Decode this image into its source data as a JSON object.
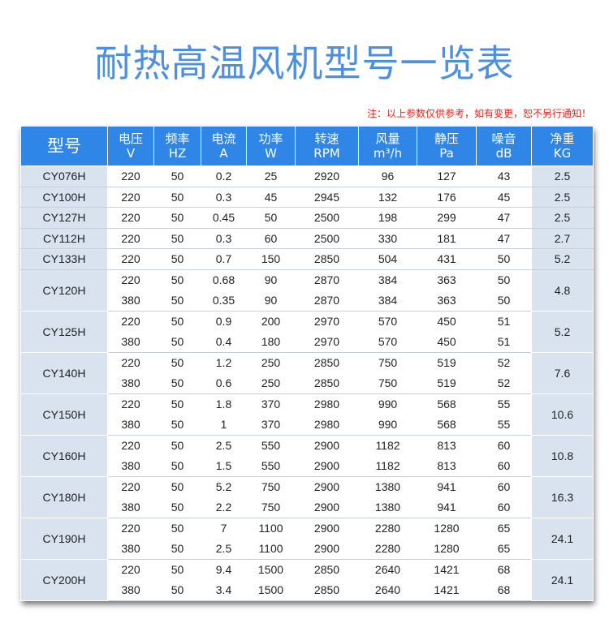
{
  "title": "耐热高温风机型号一览表",
  "note": "注：以上参数仅供参考，如有变更，恕不另行通知！",
  "columns": [
    {
      "l1": "型号",
      "l2": ""
    },
    {
      "l1": "电压",
      "l2": "V"
    },
    {
      "l1": "频率",
      "l2": "HZ"
    },
    {
      "l1": "电流",
      "l2": "A"
    },
    {
      "l1": "功率",
      "l2": "W"
    },
    {
      "l1": "转速",
      "l2": "RPM"
    },
    {
      "l1": "风量",
      "l2": "m³/h"
    },
    {
      "l1": "静压",
      "l2": "Pa"
    },
    {
      "l1": "噪音",
      "l2": "dB"
    },
    {
      "l1": "净重",
      "l2": "KG"
    }
  ],
  "models": [
    {
      "model": "CY076H",
      "weight": "2.5",
      "rows": [
        [
          "220",
          "50",
          "0.2",
          "25",
          "2920",
          "96",
          "127",
          "43"
        ]
      ]
    },
    {
      "model": "CY100H",
      "weight": "2.5",
      "rows": [
        [
          "220",
          "50",
          "0.3",
          "45",
          "2945",
          "132",
          "176",
          "45"
        ]
      ]
    },
    {
      "model": "CY127H",
      "weight": "2.5",
      "rows": [
        [
          "220",
          "50",
          "0.45",
          "50",
          "2500",
          "198",
          "299",
          "47"
        ]
      ]
    },
    {
      "model": "CY112H",
      "weight": "2.7",
      "rows": [
        [
          "220",
          "50",
          "0.3",
          "60",
          "2500",
          "330",
          "181",
          "47"
        ]
      ]
    },
    {
      "model": "CY133H",
      "weight": "5.2",
      "rows": [
        [
          "220",
          "50",
          "0.7",
          "150",
          "2850",
          "504",
          "431",
          "50"
        ]
      ]
    },
    {
      "model": "CY120H",
      "weight": "4.8",
      "rows": [
        [
          "220",
          "50",
          "0.68",
          "90",
          "2870",
          "384",
          "363",
          "50"
        ],
        [
          "380",
          "50",
          "0.35",
          "90",
          "2870",
          "384",
          "363",
          "50"
        ]
      ]
    },
    {
      "model": "CY125H",
      "weight": "5.2",
      "rows": [
        [
          "220",
          "50",
          "0.9",
          "200",
          "2970",
          "570",
          "450",
          "51"
        ],
        [
          "380",
          "50",
          "0.4",
          "180",
          "2970",
          "570",
          "450",
          "51"
        ]
      ]
    },
    {
      "model": "CY140H",
      "weight": "7.6",
      "rows": [
        [
          "220",
          "50",
          "1.2",
          "250",
          "2850",
          "750",
          "519",
          "52"
        ],
        [
          "380",
          "50",
          "0.6",
          "250",
          "2850",
          "750",
          "519",
          "52"
        ]
      ]
    },
    {
      "model": "CY150H",
      "weight": "10.6",
      "rows": [
        [
          "220",
          "50",
          "1.8",
          "370",
          "2980",
          "990",
          "568",
          "55"
        ],
        [
          "380",
          "50",
          "1",
          "370",
          "2980",
          "990",
          "568",
          "55"
        ]
      ]
    },
    {
      "model": "CY160H",
      "weight": "10.8",
      "rows": [
        [
          "220",
          "50",
          "2.5",
          "550",
          "2900",
          "1182",
          "813",
          "60"
        ],
        [
          "380",
          "50",
          "1.5",
          "550",
          "2900",
          "1182",
          "813",
          "60"
        ]
      ]
    },
    {
      "model": "CY180H",
      "weight": "16.3",
      "rows": [
        [
          "220",
          "50",
          "5.2",
          "750",
          "2900",
          "1380",
          "941",
          "60"
        ],
        [
          "380",
          "50",
          "2.2",
          "750",
          "2900",
          "1380",
          "941",
          "60"
        ]
      ]
    },
    {
      "model": "CY190H",
      "weight": "24.1",
      "rows": [
        [
          "220",
          "50",
          "7",
          "1100",
          "2900",
          "2280",
          "1280",
          "65"
        ],
        [
          "380",
          "50",
          "2.5",
          "1100",
          "2900",
          "2280",
          "1280",
          "65"
        ]
      ]
    },
    {
      "model": "CY200H",
      "weight": "24.1",
      "rows": [
        [
          "220",
          "50",
          "9.4",
          "1500",
          "2850",
          "2640",
          "1421",
          "68"
        ],
        [
          "380",
          "50",
          "3.4",
          "1500",
          "2850",
          "2640",
          "1421",
          "68"
        ]
      ]
    }
  ]
}
